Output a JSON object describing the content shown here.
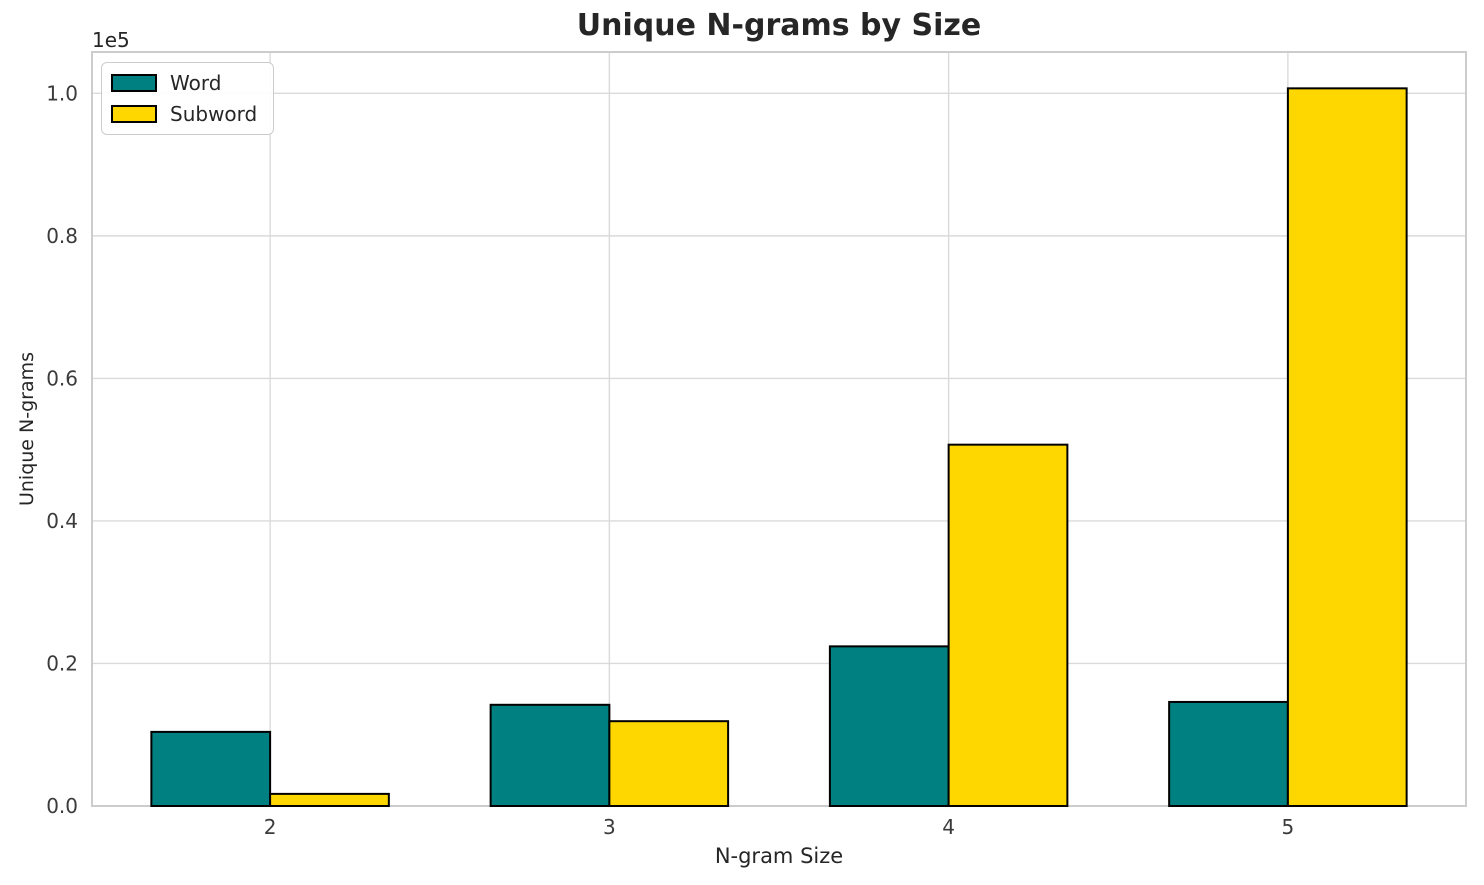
{
  "title": "Unique N-grams by Size",
  "axes": {
    "xlabel": "N-gram Size",
    "ylabel": "Unique N-grams",
    "offset_text": "1e5",
    "x_ticks": [
      "2",
      "3",
      "4",
      "5"
    ],
    "y_ticks": [
      "0.0",
      "0.2",
      "0.4",
      "0.6",
      "0.8",
      "1.0"
    ]
  },
  "legend": {
    "items": [
      {
        "label": "Word",
        "color": "#008080"
      },
      {
        "label": "Subword",
        "color": "#FFD700"
      }
    ]
  },
  "colors": {
    "grid": "#dadada",
    "spine": "#cccccc",
    "bar_edge": "#000000",
    "tick_text": "#3b3b3b"
  },
  "chart_data": {
    "type": "bar",
    "title": "Unique N-grams by Size",
    "xlabel": "N-gram Size",
    "ylabel": "Unique N-grams",
    "categories": [
      2,
      3,
      4,
      5
    ],
    "series": [
      {
        "name": "Word",
        "color": "#008080",
        "values": [
          10400,
          14200,
          22400,
          14600
        ]
      },
      {
        "name": "Subword",
        "color": "#FFD700",
        "values": [
          1700,
          11900,
          50700,
          100700
        ]
      }
    ],
    "y_scale_factor": 100000,
    "y_tick_values": [
      0,
      20000,
      40000,
      60000,
      80000,
      100000
    ],
    "ylim": [
      0,
      105800
    ],
    "bar_width_fraction": 0.35,
    "grid": true,
    "legend_position": "upper left"
  }
}
